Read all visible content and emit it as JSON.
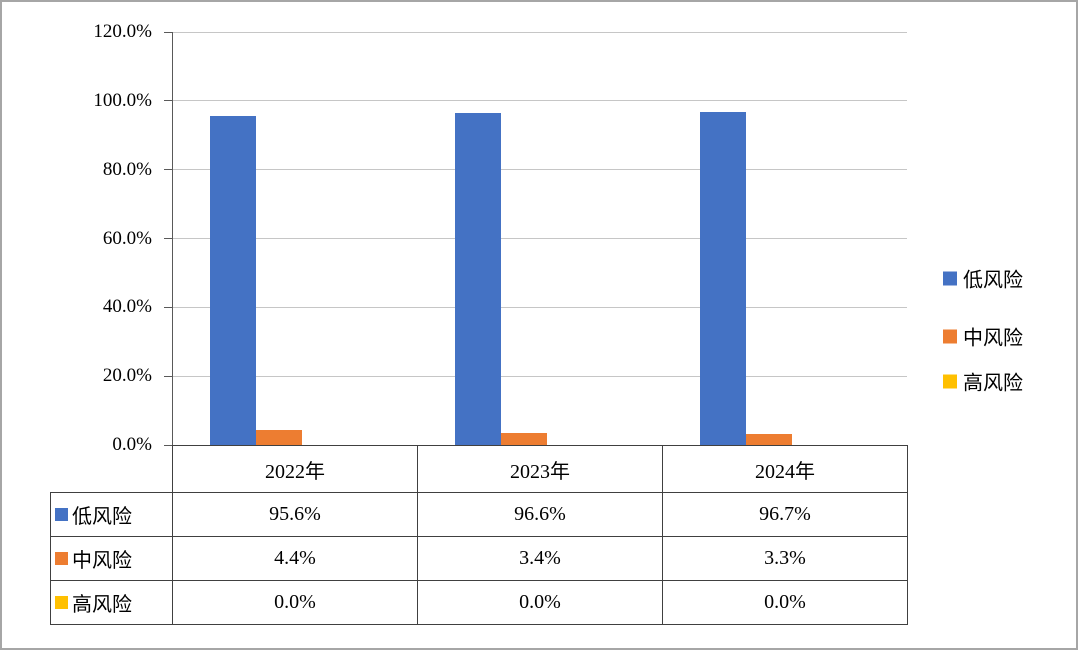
{
  "chart_data": {
    "type": "bar",
    "title": "",
    "categories": [
      "2022年",
      "2023年",
      "2024年"
    ],
    "series": [
      {
        "name": "低风险",
        "color": "#4472C4",
        "values": [
          95.6,
          96.6,
          96.7
        ]
      },
      {
        "name": "中风险",
        "color": "#ED7D31",
        "values": [
          4.4,
          3.4,
          3.3
        ]
      },
      {
        "name": "高风险",
        "color": "#FFC000",
        "values": [
          0.0,
          0.0,
          0.0
        ]
      }
    ],
    "ylim": [
      0,
      120
    ],
    "ytick_labels": [
      "0.0%",
      "20.0%",
      "40.0%",
      "60.0%",
      "80.0%",
      "100.0%",
      "120.0%"
    ],
    "grid": true,
    "legend_position": "right",
    "data_table_shown": true,
    "table": {
      "column_headers": [
        "2022年",
        "2023年",
        "2024年"
      ],
      "rows": [
        {
          "label": "低风险",
          "values": [
            "95.6%",
            "96.6%",
            "96.7%"
          ]
        },
        {
          "label": "中风险",
          "values": [
            "4.4%",
            "3.4%",
            "3.3%"
          ]
        },
        {
          "label": "高风险",
          "values": [
            "0.0%",
            "0.0%",
            "0.0%"
          ]
        }
      ]
    }
  }
}
